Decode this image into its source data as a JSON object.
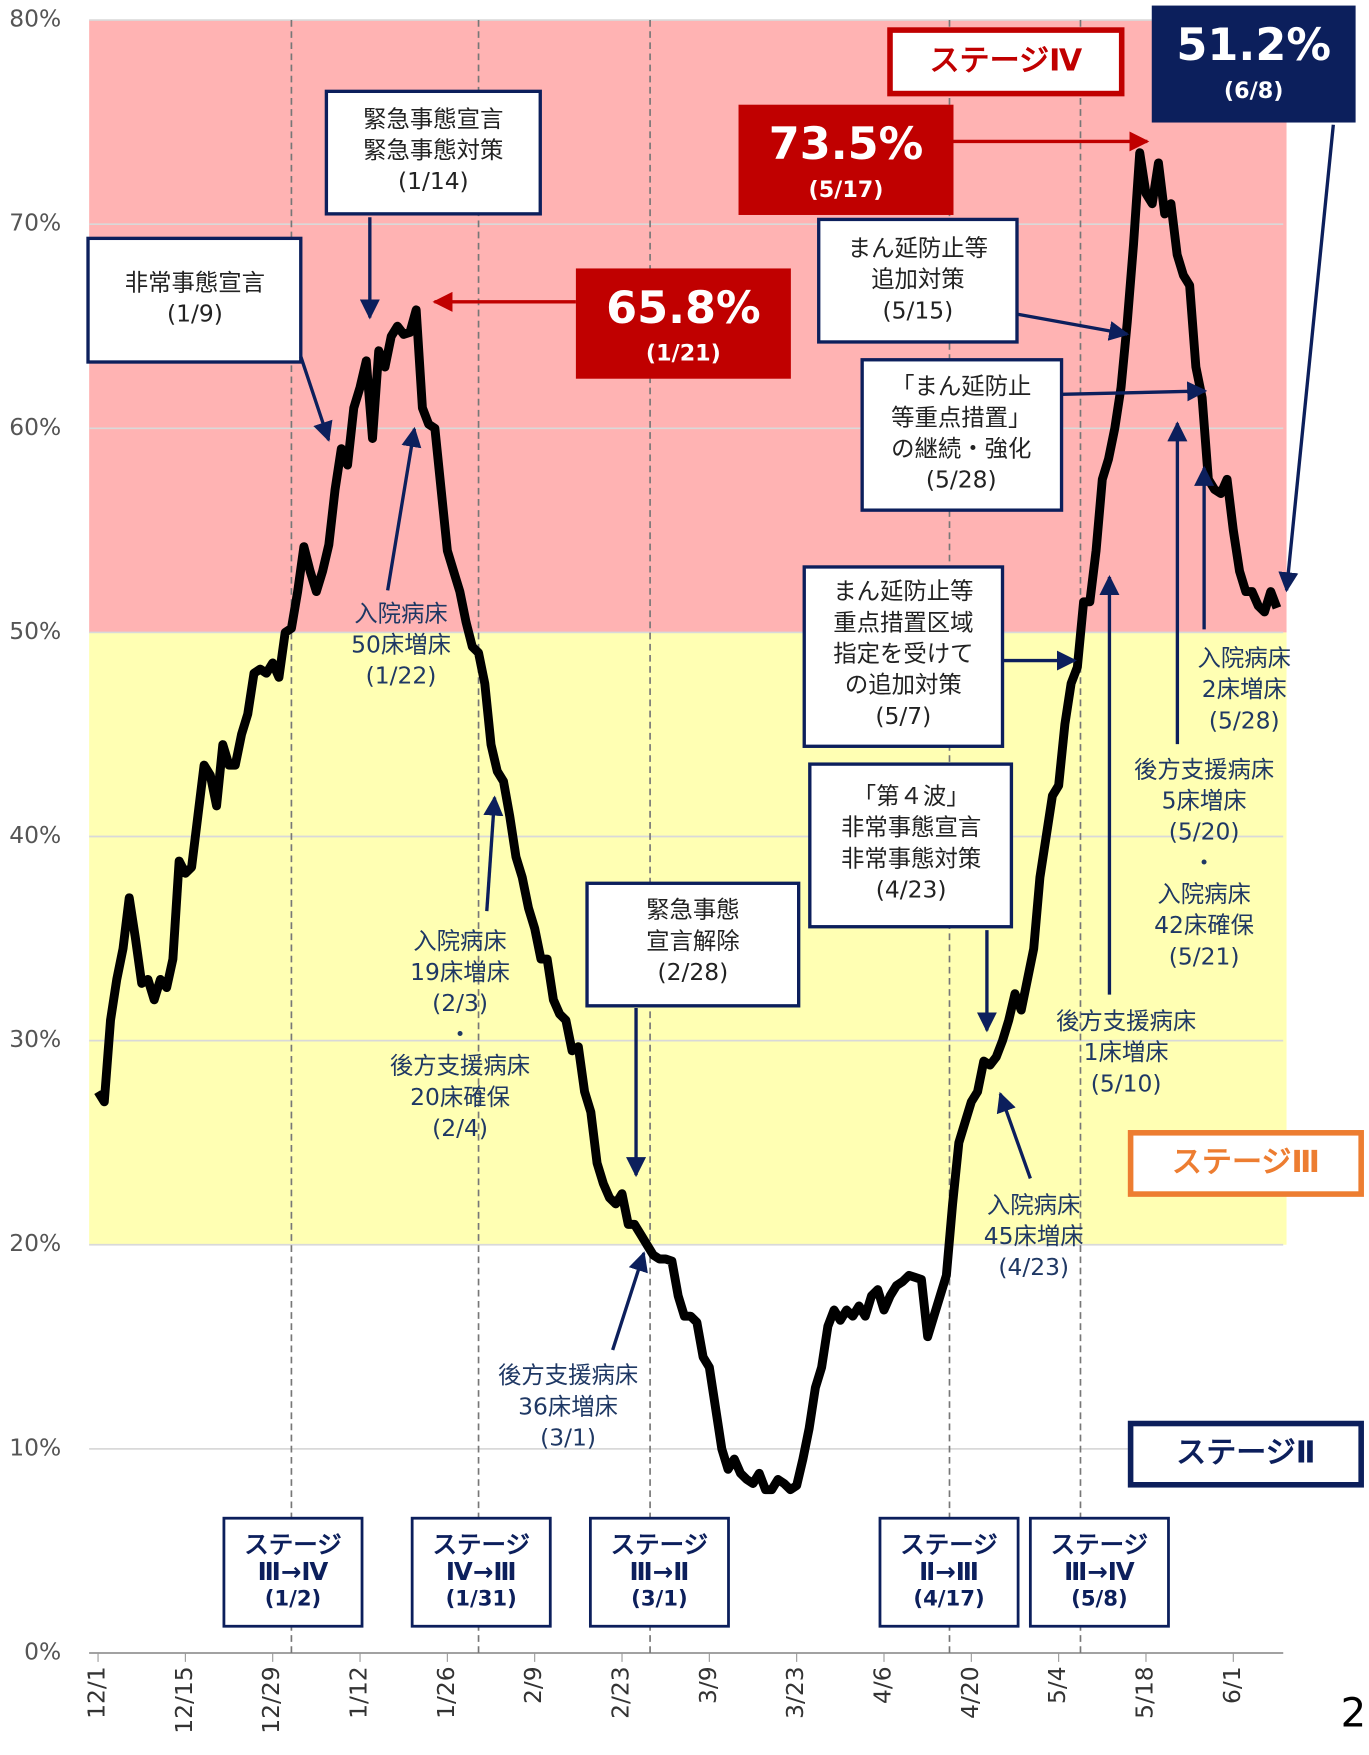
{
  "chart_data": {
    "type": "line",
    "page_number": "2",
    "xlim": [
      0,
      190
    ],
    "ylim": [
      0,
      80
    ],
    "yticks": [
      {
        "value": 0,
        "label": "0%"
      },
      {
        "value": 10,
        "label": "10%"
      },
      {
        "value": 20,
        "label": "20%"
      },
      {
        "value": 30,
        "label": "30%"
      },
      {
        "value": 40,
        "label": "40%"
      },
      {
        "value": 50,
        "label": "50%"
      },
      {
        "value": 60,
        "label": "60%"
      },
      {
        "value": 70,
        "label": "70%"
      },
      {
        "value": 80,
        "label": "80%"
      }
    ],
    "xticks": [
      {
        "value": 0,
        "label": "12/1"
      },
      {
        "value": 14,
        "label": "12/15"
      },
      {
        "value": 28,
        "label": "12/29"
      },
      {
        "value": 42,
        "label": "1/12"
      },
      {
        "value": 56,
        "label": "1/26"
      },
      {
        "value": 70,
        "label": "2/9"
      },
      {
        "value": 84,
        "label": "2/23"
      },
      {
        "value": 98,
        "label": "3/9"
      },
      {
        "value": 112,
        "label": "3/23"
      },
      {
        "value": 126,
        "label": "4/6"
      },
      {
        "value": 140,
        "label": "4/20"
      },
      {
        "value": 154,
        "label": "5/4"
      },
      {
        "value": 168,
        "label": "5/18"
      },
      {
        "value": 182,
        "label": "6/1"
      }
    ],
    "grid": true,
    "bands": [
      {
        "from": 20,
        "to": 50,
        "color": "#ffffb3"
      },
      {
        "from": 50,
        "to": 80,
        "color": "#ffb3b3"
      }
    ],
    "series": [
      {
        "color": "#000000",
        "x": [
          0,
          1,
          2,
          3,
          4,
          5,
          6,
          7,
          8,
          9,
          10,
          11,
          12,
          13,
          14,
          15,
          16,
          17,
          18,
          19,
          20,
          21,
          22,
          23,
          24,
          25,
          26,
          27,
          28,
          29,
          30,
          31,
          32,
          33,
          34,
          35,
          36,
          37,
          38,
          39,
          40,
          41,
          42,
          43,
          44,
          45,
          46,
          47,
          48,
          49,
          50,
          51,
          52,
          53,
          54,
          55,
          56,
          57,
          58,
          59,
          60,
          61,
          62,
          63,
          64,
          65,
          66,
          67,
          68,
          69,
          70,
          71,
          72,
          73,
          74,
          75,
          76,
          77,
          78,
          79,
          80,
          81,
          82,
          83,
          84,
          85,
          86,
          87,
          88,
          89,
          90,
          91,
          92,
          93,
          94,
          95,
          96,
          97,
          98,
          99,
          100,
          101,
          102,
          103,
          104,
          105,
          106,
          107,
          108,
          109,
          110,
          111,
          112,
          113,
          114,
          115,
          116,
          117,
          118,
          119,
          120,
          121,
          122,
          123,
          124,
          125,
          126,
          127,
          128,
          129,
          130,
          131,
          132,
          133,
          134,
          135,
          136,
          137,
          138,
          139,
          140,
          141,
          142,
          143,
          144,
          145,
          146,
          147,
          148,
          149,
          150,
          151,
          152,
          153,
          154,
          155,
          156,
          157,
          158,
          159,
          160,
          161,
          162,
          163,
          164,
          165,
          166,
          167,
          168,
          169,
          170,
          171,
          172,
          173,
          174,
          175,
          176,
          177,
          178,
          179,
          180,
          181,
          182,
          183,
          184,
          185,
          186,
          187,
          188,
          189
        ],
        "values": [
          27.5,
          27,
          31,
          33,
          34.5,
          37,
          35,
          32.8,
          33,
          32,
          33,
          32.6,
          34,
          38.8,
          38.2,
          38.5,
          41,
          43.5,
          43,
          41.5,
          44.5,
          43.5,
          43.5,
          45,
          46,
          48,
          48.2,
          48,
          48.5,
          47.8,
          50,
          50.2,
          52,
          54.2,
          53,
          52,
          53,
          54.3,
          57,
          59,
          58.2,
          61,
          62,
          63.3,
          59.5,
          63.8,
          63,
          64.5,
          65,
          64.6,
          64.7,
          65.8,
          61,
          60.2,
          60,
          57,
          54,
          53,
          52,
          50.5,
          49.3,
          49,
          47.5,
          44.5,
          43.2,
          42.7,
          41,
          39,
          38,
          36.5,
          35.5,
          34,
          34,
          32,
          31.3,
          31,
          29.5,
          29.7,
          27.5,
          26.5,
          24,
          23,
          22.3,
          22,
          22.5,
          21,
          21,
          20.5,
          20,
          19.5,
          19.3,
          19.3,
          19.2,
          17.5,
          16.5,
          16.5,
          16.2,
          14.5,
          14,
          12,
          10,
          9,
          9.5,
          8.8,
          8.5,
          8.3,
          8.8,
          8,
          8,
          8.5,
          8.3,
          8,
          8.2,
          9.5,
          11,
          13,
          14,
          16,
          16.8,
          16.3,
          16.8,
          16.5,
          17,
          16.5,
          17.5,
          17.8,
          16.8,
          17.5,
          18,
          18.2,
          18.5,
          18.4,
          18.3,
          15.5,
          16.5,
          17.5,
          18.5,
          22,
          25,
          26,
          27,
          27.5,
          29,
          28.8,
          29.2,
          30,
          31,
          32.3,
          31.5,
          33,
          34.5,
          38,
          40,
          42,
          42.5,
          45.5,
          47.5,
          48.3,
          51.5,
          51.5,
          54,
          57.5,
          58.5,
          60,
          62,
          65.2,
          69,
          73.5,
          71.5,
          71,
          73,
          70.5,
          71,
          68.5,
          67.5,
          67,
          63,
          61.5,
          57.5,
          57,
          56.8,
          57.5,
          55,
          53,
          52,
          52,
          51.3,
          51,
          52,
          51.2
        ]
      }
    ],
    "stage_labels": [
      {
        "text": "ステージⅣ",
        "color": "#c00000"
      },
      {
        "text": "ステージⅢ",
        "color": "#ed7d31"
      },
      {
        "text": "ステージⅡ",
        "color": "#0c1f5c"
      }
    ],
    "stage_changes": [
      {
        "x": 31,
        "lines": [
          "ステージ",
          "Ⅲ→Ⅳ",
          "(1/2)"
        ]
      },
      {
        "x": 61,
        "lines": [
          "ステージ",
          "Ⅳ→Ⅲ",
          "(1/31)"
        ]
      },
      {
        "x": 88.5,
        "lines": [
          "ステージ",
          "Ⅲ→Ⅱ",
          "(3/1)"
        ]
      },
      {
        "x": 136.5,
        "lines": [
          "ステージ",
          "Ⅱ→Ⅲ",
          "(4/17)"
        ]
      },
      {
        "x": 157.5,
        "lines": [
          "ステージ",
          "Ⅲ→Ⅳ",
          "(5/8)"
        ]
      }
    ],
    "peak_labels": [
      {
        "label": "65.8%",
        "date": "(1/21)",
        "color": "#c00000"
      },
      {
        "label": "73.5%",
        "date": "(5/17)",
        "color": "#c00000"
      },
      {
        "label": "51.2%",
        "date": "(6/8)",
        "color": "#0c1f5c"
      }
    ],
    "annotations": [
      {
        "lines": [
          "非常事態宣言",
          "(1/9)"
        ]
      },
      {
        "lines": [
          "緊急事態宣言",
          "緊急事態対策",
          "(1/14)"
        ]
      },
      {
        "lines": [
          "入院病床",
          "50床増床",
          "(1/22)"
        ]
      },
      {
        "lines": [
          "入院病床",
          "19床増床",
          "(2/3)",
          "・",
          "後方支援病床",
          "20床確保",
          "(2/4)"
        ]
      },
      {
        "lines": [
          "緊急事態",
          "宣言解除",
          "(2/28)"
        ]
      },
      {
        "lines": [
          "後方支援病床",
          "36床増床",
          "(3/1)"
        ]
      },
      {
        "lines": [
          "「第４波」",
          "非常事態宣言",
          "非常事態対策",
          "(4/23)"
        ]
      },
      {
        "lines": [
          "入院病床",
          "45床増床",
          "(4/23)"
        ]
      },
      {
        "lines": [
          "まん延防止等",
          "重点措置区域",
          "指定を受けて",
          "の追加対策",
          "(5/7)"
        ]
      },
      {
        "lines": [
          "後方支援病床",
          "1床増床",
          "(5/10)"
        ]
      },
      {
        "lines": [
          "まん延防止等",
          "追加対策",
          "(5/15)"
        ]
      },
      {
        "lines": [
          "「まん延防止",
          "等重点措置」",
          "の継続・強化",
          "(5/28)"
        ]
      },
      {
        "lines": [
          "後方支援病床",
          "5床増床",
          "(5/20)",
          "・",
          "入院病床",
          "42床確保",
          "(5/21)"
        ]
      },
      {
        "lines": [
          "入院病床",
          "2床増床",
          "(5/28)"
        ]
      }
    ]
  }
}
